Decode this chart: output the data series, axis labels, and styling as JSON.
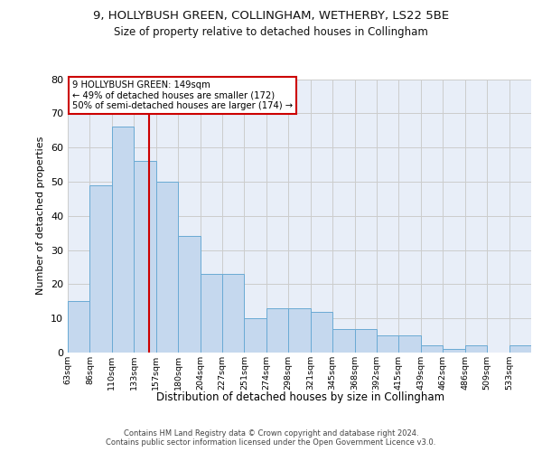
{
  "title1": "9, HOLLYBUSH GREEN, COLLINGHAM, WETHERBY, LS22 5BE",
  "title2": "Size of property relative to detached houses in Collingham",
  "xlabel": "Distribution of detached houses by size in Collingham",
  "ylabel": "Number of detached properties",
  "bar_values": [
    15,
    49,
    66,
    56,
    50,
    34,
    23,
    23,
    10,
    13,
    13,
    12,
    7,
    7,
    5,
    5,
    2,
    1,
    2,
    0,
    2
  ],
  "bar_labels": [
    "63sqm",
    "86sqm",
    "110sqm",
    "133sqm",
    "157sqm",
    "180sqm",
    "204sqm",
    "227sqm",
    "251sqm",
    "274sqm",
    "298sqm",
    "321sqm",
    "345sqm",
    "368sqm",
    "392sqm",
    "415sqm",
    "439sqm",
    "462sqm",
    "486sqm",
    "509sqm",
    "533sqm"
  ],
  "bar_color": "#C5D8EE",
  "bar_edge_color": "#6AAAD4",
  "red_line_color": "#cc0000",
  "annotation_text1": "9 HOLLYBUSH GREEN: 149sqm",
  "annotation_text2": "← 49% of detached houses are smaller (172)",
  "annotation_text3": "50% of semi-detached houses are larger (174) →",
  "annotation_box_facecolor": "#ffffff",
  "annotation_box_edgecolor": "#cc0000",
  "ylim": [
    0,
    80
  ],
  "yticks": [
    0,
    10,
    20,
    30,
    40,
    50,
    60,
    70,
    80
  ],
  "grid_color": "#cccccc",
  "bg_color": "#e8eef8",
  "footer1": "Contains HM Land Registry data © Crown copyright and database right 2024.",
  "footer2": "Contains public sector information licensed under the Open Government Licence v3.0."
}
